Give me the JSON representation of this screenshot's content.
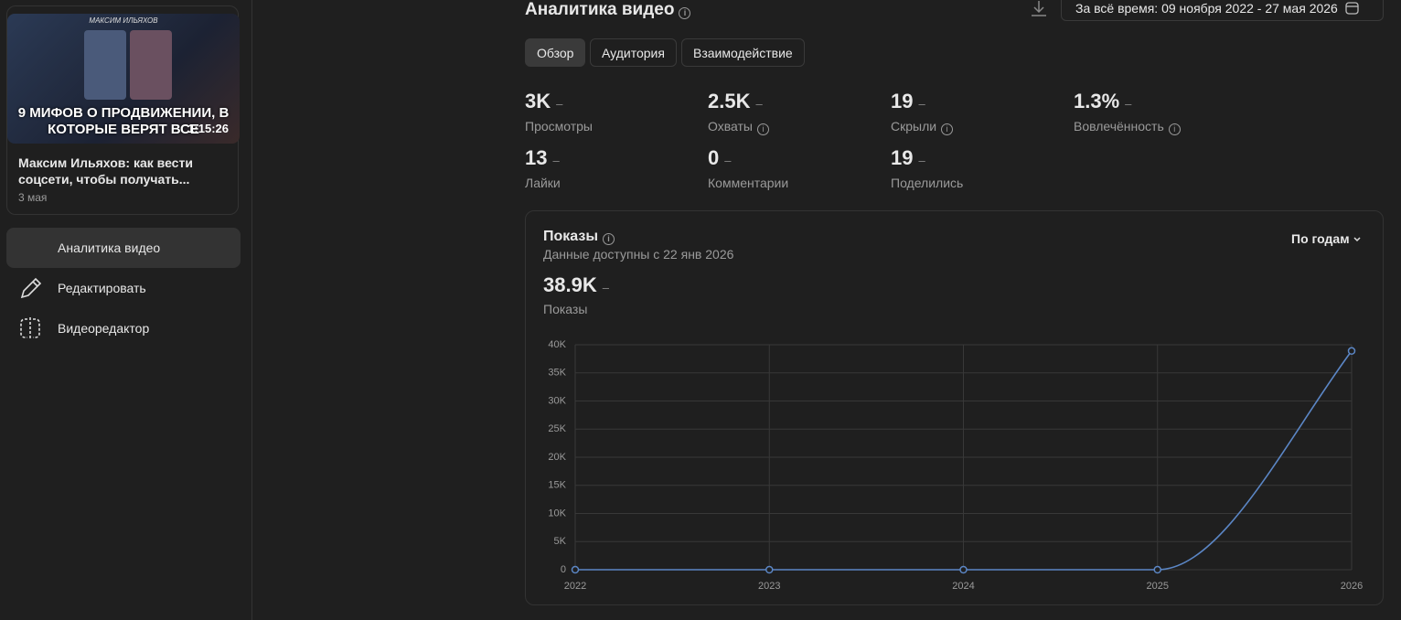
{
  "sidebar": {
    "video": {
      "thumbnail_author": "МАКСИМ ИЛЬЯХОВ",
      "thumbnail_headline": "9 МИФОВ О ПРОДВИЖЕНИИ, В КОТОРЫЕ ВЕРЯТ ВСЕ",
      "duration": "1:15:26",
      "title": "Максим Ильяхов: как вести соцсети, чтобы получать...",
      "date": "3 мая"
    },
    "menu": [
      {
        "label": "Аналитика видео",
        "active": true
      },
      {
        "label": "Редактировать",
        "active": false
      },
      {
        "label": "Видеоредактор",
        "active": false
      }
    ]
  },
  "header": {
    "title": "Аналитика видео",
    "date_range": "За всё время: 09 ноября 2022 - 27 мая 2026"
  },
  "tabs": [
    {
      "label": "Обзор",
      "active": true
    },
    {
      "label": "Аудитория",
      "active": false
    },
    {
      "label": "Взаимодействие",
      "active": false
    }
  ],
  "metrics": [
    {
      "value": "3K",
      "change": "–",
      "label": "Просмотры",
      "info": false
    },
    {
      "value": "2.5K",
      "change": "–",
      "label": "Охваты",
      "info": true
    },
    {
      "value": "19",
      "change": "–",
      "label": "Скрыли",
      "info": true
    },
    {
      "value": "1.3%",
      "change": "–",
      "label": "Вовлечённость",
      "info": true
    },
    {
      "value": "13",
      "change": "–",
      "label": "Лайки",
      "info": false
    },
    {
      "value": "0",
      "change": "–",
      "label": "Комментарии",
      "info": false
    },
    {
      "value": "19",
      "change": "–",
      "label": "Поделились",
      "info": false
    }
  ],
  "card": {
    "title": "Показы",
    "subtitle": "Данные доступны с 22 янв 2026",
    "period": "По годам",
    "total": "38.9K",
    "total_change": "–",
    "total_label": "Показы"
  },
  "chart_data": {
    "type": "line",
    "categories": [
      "2022",
      "2023",
      "2024",
      "2025",
      "2026"
    ],
    "values": [
      0,
      0,
      0,
      0,
      38900
    ],
    "color": "#5b86c5",
    "ylim": [
      0,
      40000
    ],
    "yticks": [
      0,
      {
        "value": 5000,
        "label": "5K"
      },
      {
        "value": 10000,
        "label": "10K"
      },
      {
        "value": 15000,
        "label": "15K"
      },
      {
        "value": 20000,
        "label": "20K"
      },
      {
        "value": 25000,
        "label": "25K"
      },
      {
        "value": 30000,
        "label": "30K"
      },
      {
        "value": 35000,
        "label": "35K"
      },
      {
        "value": 40000,
        "label": "40K"
      }
    ],
    "grid": true
  }
}
